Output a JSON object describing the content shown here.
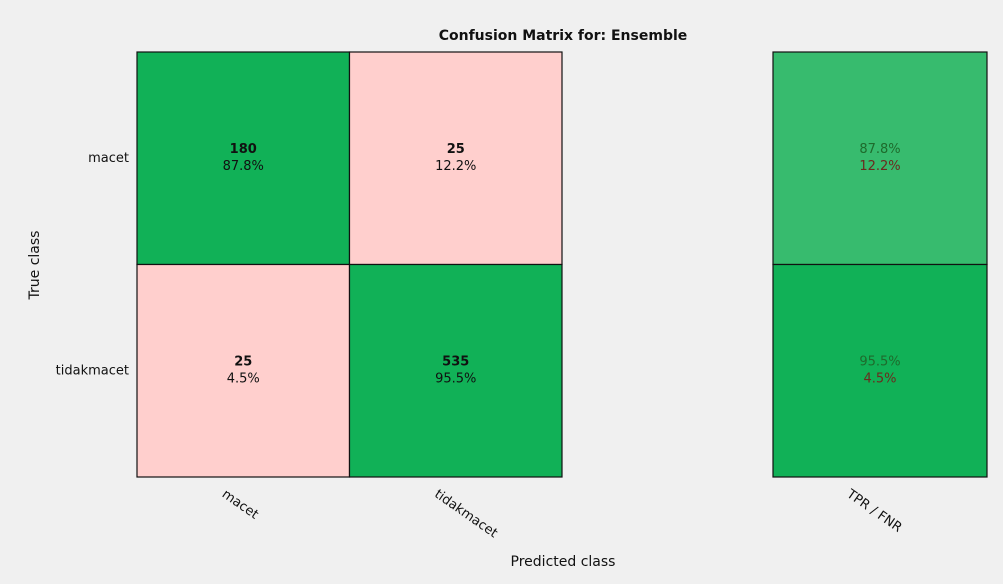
{
  "chart_data": {
    "type": "confusion_matrix",
    "title": "Confusion Matrix for: Ensemble",
    "xlabel": "Predicted class",
    "ylabel": "True class",
    "categories": [
      "macet",
      "tidakmacet"
    ],
    "values": [
      [
        180,
        25
      ],
      [
        25,
        535
      ]
    ],
    "percents": [
      [
        87.8,
        12.2
      ],
      [
        4.5,
        95.5
      ]
    ],
    "percent_labels": [
      [
        "87.8%",
        "12.2%"
      ],
      [
        "4.5%",
        "95.5%"
      ]
    ],
    "summary_label": "TPR / FNR",
    "summary": [
      [
        87.8,
        12.2
      ],
      [
        95.5,
        4.5
      ]
    ],
    "summary_labels": [
      [
        "87.8%",
        "12.2%"
      ],
      [
        "95.5%",
        "4.5%"
      ]
    ],
    "colors": {
      "correct": "#11b157",
      "incorrect": "#ffcfcd"
    },
    "summary_colors": [
      "#37bb6e",
      "#11b157"
    ]
  }
}
